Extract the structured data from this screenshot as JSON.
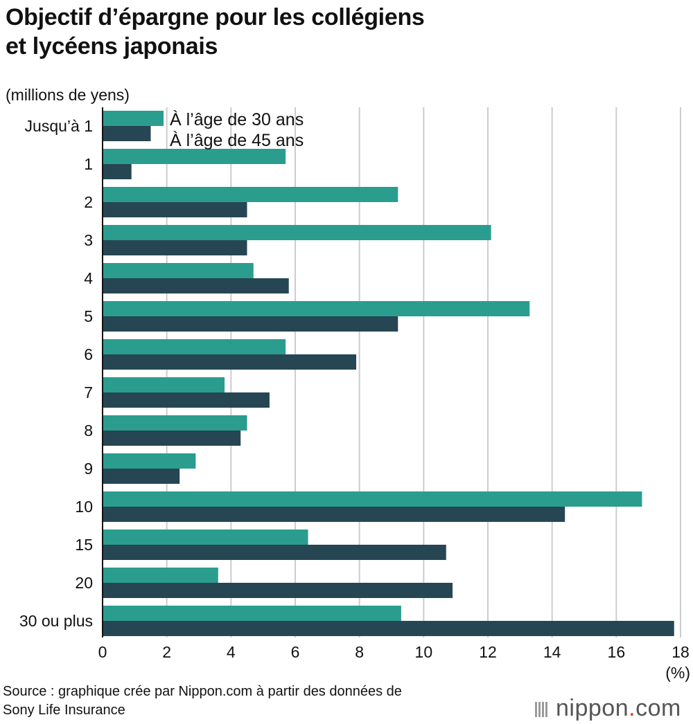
{
  "chart_data": {
    "type": "bar",
    "orientation": "horizontal",
    "title": "Objectif d’épargne pour les collégiens et lycéens japonais",
    "title_lines": [
      "Objectif d’épargne pour les collégiens",
      "et lycéens japonais"
    ],
    "unit_label": "(millions de yens)",
    "xlabel": "(%)",
    "categories": [
      "Jusqu’à 1",
      "1",
      "2",
      "3",
      "4",
      "5",
      "6",
      "7",
      "8",
      "9",
      "10",
      "15",
      "20",
      "30 ou plus"
    ],
    "series": [
      {
        "name": "À l’âge de 30 ans",
        "color": "#2a9d8f",
        "values": [
          1.9,
          5.7,
          9.2,
          12.1,
          4.7,
          13.3,
          5.7,
          3.8,
          4.5,
          2.9,
          16.8,
          6.4,
          3.6,
          9.3
        ]
      },
      {
        "name": "À l’âge de 45 ans",
        "color": "#264653",
        "values": [
          1.5,
          0.9,
          4.5,
          4.5,
          5.8,
          9.2,
          7.9,
          5.2,
          4.3,
          2.4,
          14.4,
          10.7,
          10.9,
          17.8
        ]
      }
    ],
    "xlim": [
      0,
      18
    ],
    "xticks": [
      "0",
      "2",
      "4",
      "6",
      "8",
      "10",
      "12",
      "14",
      "16",
      "18"
    ],
    "grid": true,
    "legend_position": "top-left"
  },
  "source_lines": [
    "Source : graphique crée par Nippon.com à partir des données de",
    "Sony Life Insurance"
  ],
  "brand": {
    "name": "nippon",
    "dot": ".",
    "suffix": "com"
  }
}
